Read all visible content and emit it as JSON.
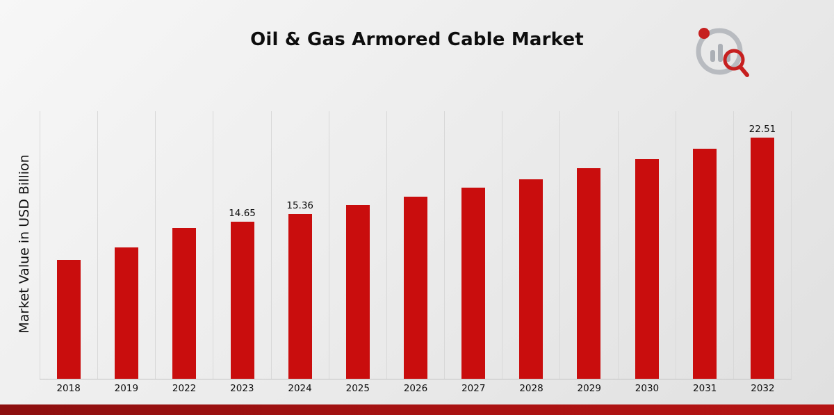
{
  "title": "Oil & Gas Armored Cable Market",
  "chart_data": {
    "type": "bar",
    "title": "Oil & Gas Armored Cable Market",
    "xlabel": "",
    "ylabel": "Market Value in USD Billion",
    "categories": [
      "2018",
      "2019",
      "2022",
      "2023",
      "2024",
      "2025",
      "2026",
      "2027",
      "2028",
      "2029",
      "2030",
      "2031",
      "2032"
    ],
    "values": [
      11.1,
      12.3,
      14.1,
      14.65,
      15.36,
      16.25,
      17.0,
      17.85,
      18.65,
      19.65,
      20.5,
      21.5,
      22.51
    ],
    "data_labels": {
      "2023": "14.65",
      "2024": "15.36",
      "2032": "22.51"
    },
    "ylim": [
      0,
      25
    ],
    "grid": "vertical",
    "legend_position": "none",
    "bar_color": "#c90d0d"
  },
  "branding": {
    "logo_icon": "market-research-chart-magnifier-logo",
    "accent_color": "#a91212"
  }
}
